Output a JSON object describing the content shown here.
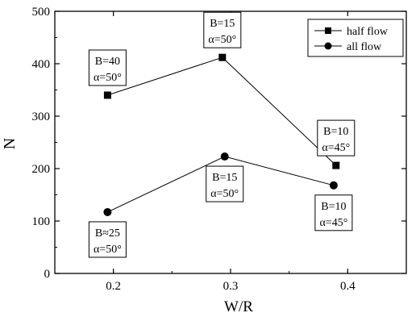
{
  "chart_data": {
    "type": "line",
    "xlabel": "W/R",
    "ylabel": "N",
    "xlim": [
      0.15,
      0.45
    ],
    "ylim": [
      0,
      500
    ],
    "x_ticks": [
      0.2,
      0.3,
      0.4
    ],
    "x_tick_labels": [
      "0.2",
      "0.3",
      "0.4"
    ],
    "y_ticks": [
      0,
      100,
      200,
      300,
      400,
      500
    ],
    "y_tick_labels": [
      "0",
      "100",
      "200",
      "300",
      "400",
      "500"
    ],
    "grid": false,
    "legend_position": "top-right",
    "series": [
      {
        "name": "half flow",
        "marker": "square",
        "x": [
          0.195,
          0.293,
          0.39
        ],
        "y": [
          340,
          412,
          206
        ],
        "annotations": [
          {
            "line1": "B=40",
            "line2": "α=50°",
            "place": "above"
          },
          {
            "line1": "B=15",
            "line2": "α=50°",
            "place": "above"
          },
          {
            "line1": "B=10",
            "line2": "α=45°",
            "place": "above"
          }
        ]
      },
      {
        "name": "all flow",
        "marker": "circle",
        "x": [
          0.195,
          0.295,
          0.388
        ],
        "y": [
          117,
          223,
          168
        ],
        "annotations": [
          {
            "line1": "B≈25",
            "line2": "α=50°",
            "place": "below"
          },
          {
            "line1": "B=15",
            "line2": "α=50°",
            "place": "below"
          },
          {
            "line1": "B=10",
            "line2": "α=45°",
            "place": "below"
          }
        ]
      }
    ]
  }
}
